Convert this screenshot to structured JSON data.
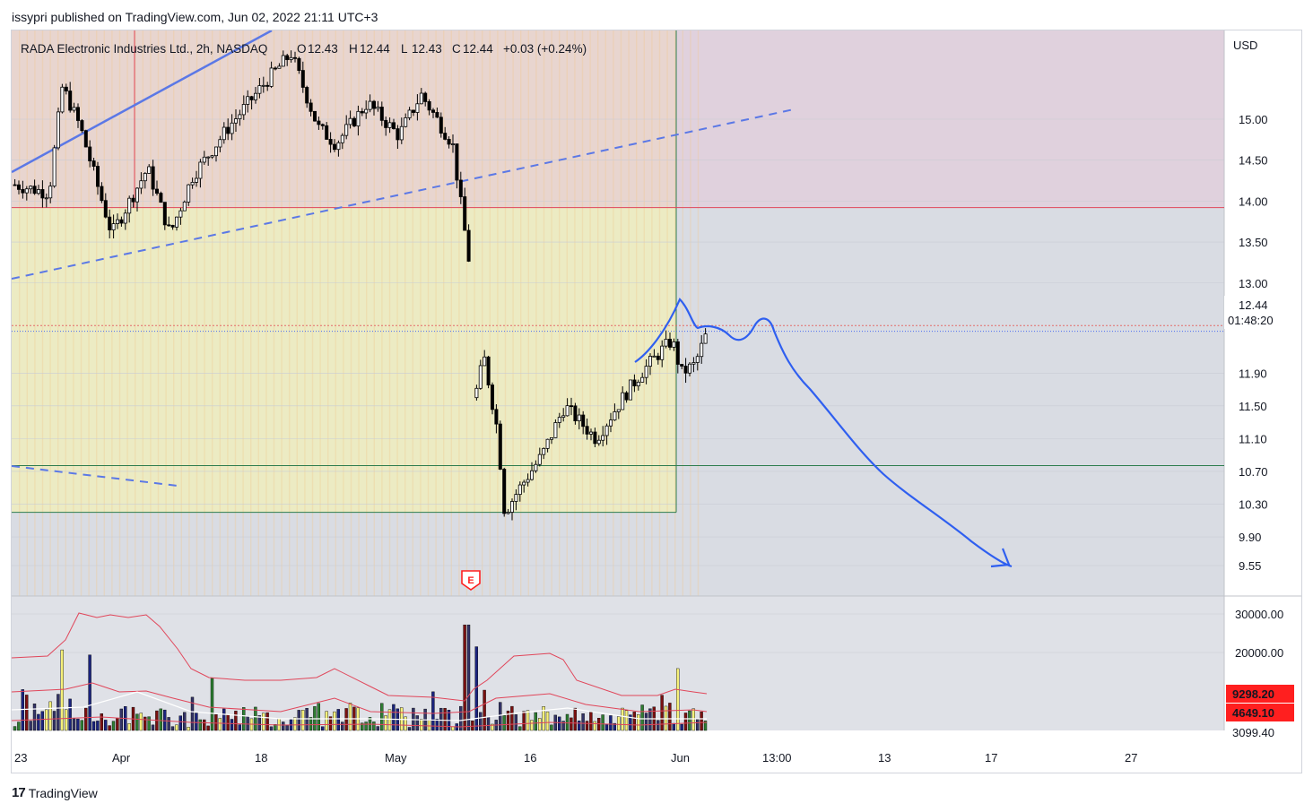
{
  "header": {
    "published_by": "issypri published on TradingView.com, Jun 02, 2022 21:11 UTC+3"
  },
  "footer": {
    "brand": "TradingView"
  },
  "colors": {
    "bg_top": "#e8d5cf",
    "bg_yellow": "#ecebc3",
    "bg_purple": "#e0d1dd",
    "bg_grey": "#d9dce3",
    "candle_up": "#ffffff",
    "candle_down": "#000000",
    "trend_blue": "#3a6ff2",
    "red_line": "#e0465a",
    "green_line": "#2e7d4f",
    "badge_red": "#ff1f1f"
  },
  "chart_data": {
    "type": "candlestick",
    "title": "RADA Electronic Industries Ltd., 2h, NASDAQ",
    "currency": "USD",
    "ohlc_readout": {
      "o_label": "O",
      "o": "12.43",
      "h_label": "H",
      "h": "12.44",
      "l_label": "L",
      "l": "12.43",
      "c_label": "C",
      "c": "12.44",
      "change": "+0.03 (+0.24%)"
    },
    "y_axis": {
      "ticks": [
        "15.00",
        "14.50",
        "14.00",
        "13.50",
        "13.00",
        "11.90",
        "11.50",
        "11.10",
        "10.70",
        "10.30",
        "9.90",
        "9.55"
      ],
      "range": [
        9.2,
        15.9
      ]
    },
    "price_badge": {
      "price": "12.44",
      "countdown": "01:48:20"
    },
    "x_axis": {
      "ticks": [
        "23",
        "Apr",
        "18",
        "May",
        "16",
        "Jun",
        "13:00",
        "13",
        "17",
        "27"
      ]
    },
    "horizontal_levels": {
      "red": 13.92,
      "green": 10.77,
      "box_bottom": 10.2
    },
    "projection_note": "hand-drawn blue arrow projecting price to ~9.55",
    "earnings_marker": "E",
    "volume": {
      "ticks": [
        "30000.00",
        "20000.00"
      ],
      "badges": [
        "9298.20",
        "4649.10",
        "3099.40"
      ]
    }
  }
}
